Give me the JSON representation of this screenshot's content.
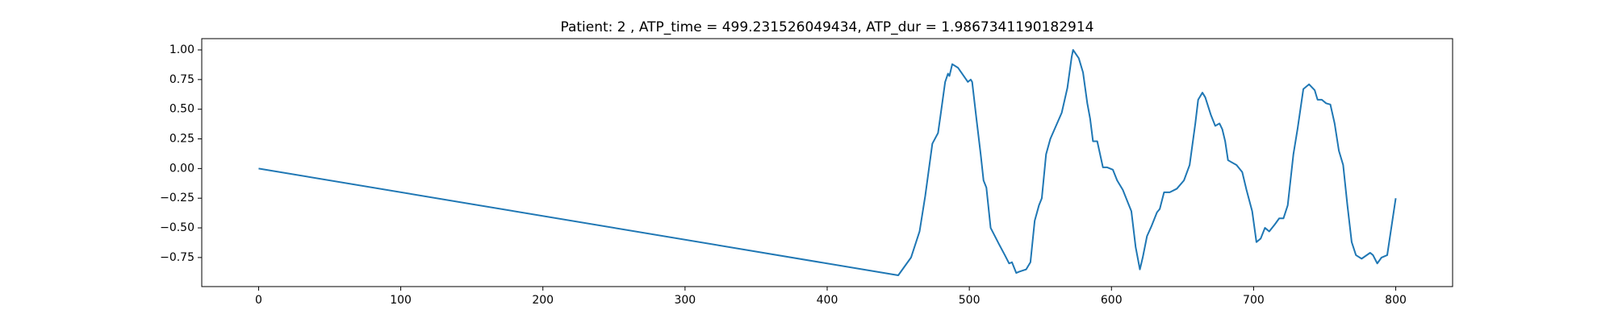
{
  "chart_data": {
    "type": "line",
    "title": "Patient: 2 , ATP_time = 499.231526049434, ATP_dur = 1.9867341190182914",
    "x": [
      0,
      450,
      459,
      465,
      469,
      474,
      478,
      480,
      483,
      485,
      486,
      488,
      492,
      499,
      501,
      502,
      505,
      508,
      510,
      512,
      515,
      521,
      525,
      528,
      530,
      533,
      535,
      540,
      543,
      546,
      549,
      551,
      554,
      557,
      565,
      569,
      572,
      573,
      577,
      580,
      583,
      585,
      587,
      590,
      592,
      594,
      597,
      601,
      604,
      608,
      614,
      617,
      620,
      622,
      625,
      628,
      632,
      634,
      637,
      641,
      646,
      651,
      655,
      659,
      661,
      664,
      666,
      670,
      673,
      676,
      678,
      680,
      682,
      688,
      692,
      695,
      699,
      702,
      705,
      708,
      711,
      715,
      718,
      721,
      724,
      728,
      731,
      735,
      739,
      743,
      745,
      748,
      751,
      754,
      757,
      760,
      763,
      766,
      769,
      772,
      776,
      782,
      784,
      787,
      790,
      794,
      796,
      800
    ],
    "series": [
      {
        "color": "#1f77b4",
        "values": [
          0,
          -0.9,
          -0.75,
          -0.53,
          -0.23,
          0.21,
          0.3,
          0.47,
          0.73,
          0.8,
          0.78,
          0.88,
          0.85,
          0.73,
          0.75,
          0.73,
          0.42,
          0.12,
          -0.1,
          -0.16,
          -0.5,
          -0.64,
          -0.73,
          -0.8,
          -0.79,
          -0.88,
          -0.87,
          -0.85,
          -0.79,
          -0.44,
          -0.31,
          -0.25,
          0.12,
          0.25,
          0.47,
          0.68,
          0.94,
          1.0,
          0.93,
          0.81,
          0.55,
          0.42,
          0.23,
          0.23,
          0.12,
          0.01,
          0.01,
          -0.01,
          -0.1,
          -0.18,
          -0.36,
          -0.66,
          -0.85,
          -0.75,
          -0.57,
          -0.49,
          -0.37,
          -0.34,
          -0.2,
          -0.2,
          -0.17,
          -0.1,
          0.03,
          0.38,
          0.58,
          0.64,
          0.6,
          0.45,
          0.36,
          0.38,
          0.33,
          0.23,
          0.07,
          0.03,
          -0.03,
          -0.18,
          -0.36,
          -0.62,
          -0.59,
          -0.5,
          -0.53,
          -0.47,
          -0.42,
          -0.42,
          -0.31,
          0.12,
          0.34,
          0.67,
          0.71,
          0.66,
          0.58,
          0.58,
          0.55,
          0.54,
          0.38,
          0.15,
          0.03,
          -0.31,
          -0.62,
          -0.73,
          -0.76,
          -0.71,
          -0.73,
          -0.8,
          -0.75,
          -0.73,
          -0.57,
          -0.25
        ]
      }
    ],
    "xlim": [
      -40,
      840
    ],
    "xticks": [
      0,
      100,
      200,
      300,
      400,
      500,
      600,
      700,
      800
    ],
    "ylim": [
      -0.995,
      1.095
    ],
    "yticks": [
      {
        "value": -0.75,
        "label": "−0.75"
      },
      {
        "value": -0.5,
        "label": "−0.50"
      },
      {
        "value": -0.25,
        "label": "−0.25"
      },
      {
        "value": 0,
        "label": "0.00"
      },
      {
        "value": 0.25,
        "label": "0.25"
      },
      {
        "value": 0.5,
        "label": "0.50"
      },
      {
        "value": 0.75,
        "label": "0.75"
      },
      {
        "value": 1,
        "label": "1.00"
      }
    ]
  }
}
